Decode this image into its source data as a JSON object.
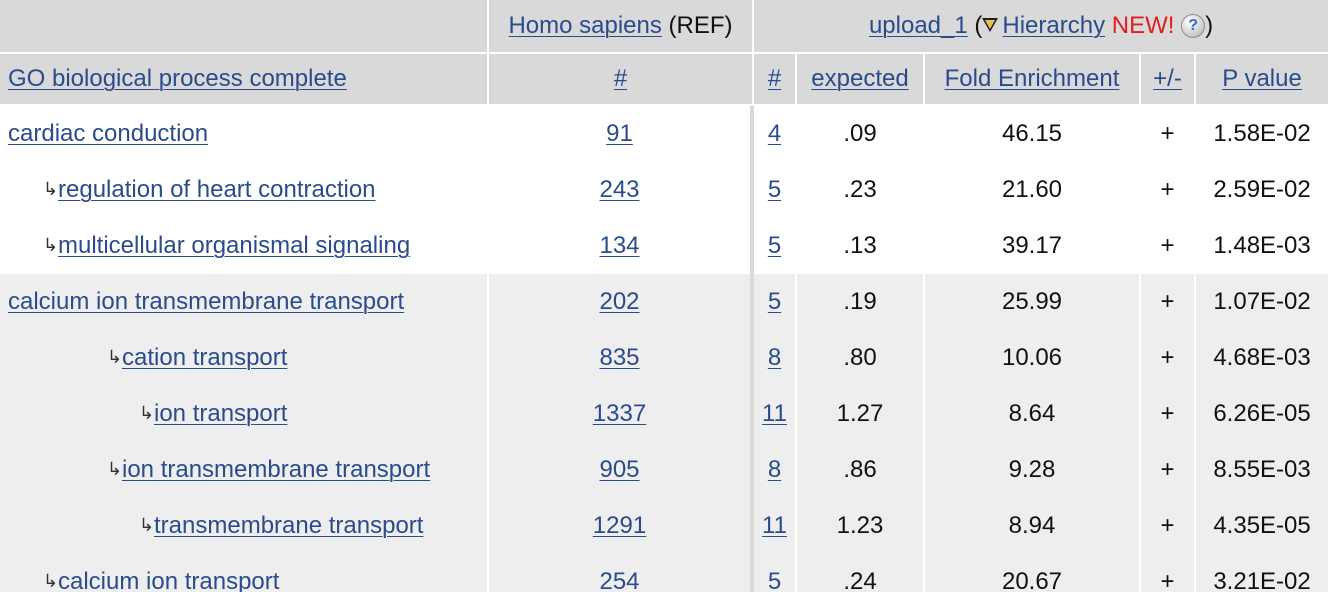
{
  "header": {
    "organism_link": "Homo sapiens",
    "organism_suffix": "(REF)",
    "upload_link": "upload_1",
    "open_paren": "(",
    "hierarchy_link": "Hierarchy",
    "new_badge": "NEW!",
    "help_glyph": "?",
    "close_paren": ")",
    "columns": {
      "process": "GO biological process complete",
      "ref_count": "#",
      "count": "#",
      "expected": "expected",
      "fold": "Fold Enrichment",
      "direction": "+/-",
      "pvalue": "P value"
    }
  },
  "rows": [
    {
      "term": "cardiac conduction",
      "ref": "91",
      "count": "4",
      "expected": ".09",
      "fold": "46.15",
      "dir": "+",
      "p": "1.58E-02"
    },
    {
      "term": "regulation of heart contraction",
      "ref": "243",
      "count": "5",
      "expected": ".23",
      "fold": "21.60",
      "dir": "+",
      "p": "2.59E-02"
    },
    {
      "term": "multicellular organismal signaling",
      "ref": "134",
      "count": "5",
      "expected": ".13",
      "fold": "39.17",
      "dir": "+",
      "p": "1.48E-03"
    },
    {
      "term": "calcium ion transmembrane transport",
      "ref": "202",
      "count": "5",
      "expected": ".19",
      "fold": "25.99",
      "dir": "+",
      "p": "1.07E-02"
    },
    {
      "term": "cation transport",
      "ref": "835",
      "count": "8",
      "expected": ".80",
      "fold": "10.06",
      "dir": "+",
      "p": "4.68E-03"
    },
    {
      "term": "ion transport",
      "ref": "1337",
      "count": "11",
      "expected": "1.27",
      "fold": "8.64",
      "dir": "+",
      "p": "6.26E-05"
    },
    {
      "term": "ion transmembrane transport",
      "ref": "905",
      "count": "8",
      "expected": ".86",
      "fold": "9.28",
      "dir": "+",
      "p": "8.55E-03"
    },
    {
      "term": "transmembrane transport",
      "ref": "1291",
      "count": "11",
      "expected": "1.23",
      "fold": "8.94",
      "dir": "+",
      "p": "4.35E-05"
    },
    {
      "term": "calcium ion transport",
      "ref": "254",
      "count": "5",
      "expected": ".24",
      "fold": "20.67",
      "dir": "+",
      "p": "3.21E-02"
    }
  ],
  "hierarchy_arrow": "↳",
  "colors": {
    "link": "#2a4c8c",
    "header_bg": "#d9d9d9",
    "shaded_row_bg": "#eeeeee",
    "new_badge": "#e02020"
  }
}
